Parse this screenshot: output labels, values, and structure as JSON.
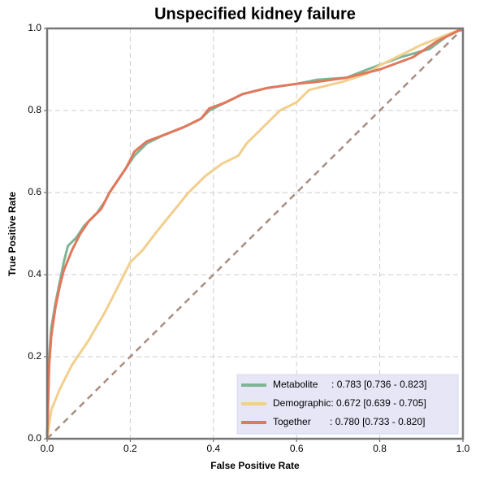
{
  "chart_data": {
    "type": "line",
    "title": "Unspecified kidney failure",
    "xlabel": "False Positive Rate",
    "ylabel": "True Positive Rate",
    "xlim": [
      0,
      1
    ],
    "ylim": [
      0,
      1
    ],
    "xticks": [
      {
        "value": 0,
        "label": "0.0"
      },
      0.2,
      0.4,
      0.6,
      0.8,
      {
        "value": 1,
        "label": "1.0"
      }
    ],
    "yticks": [
      {
        "value": 0,
        "label": "0.0"
      },
      0.2,
      0.4,
      0.6,
      0.8,
      {
        "value": 1,
        "label": "1.0"
      }
    ],
    "grid": true,
    "legend": "lower right",
    "series": [
      {
        "name": "Metabolite     : 0.783 [0.736 - 0.823]",
        "color": "#7fb596",
        "x": [
          0,
          0.005,
          0.01,
          0.02,
          0.03,
          0.04,
          0.05,
          0.07,
          0.09,
          0.12,
          0.14,
          0.15,
          0.17,
          0.19,
          0.21,
          0.24,
          0.28,
          0.33,
          0.37,
          0.39,
          0.43,
          0.47,
          0.53,
          0.6,
          0.65,
          0.72,
          0.77,
          0.85,
          0.92,
          0.96,
          1
        ],
        "values": [
          0,
          0.2,
          0.27,
          0.33,
          0.38,
          0.43,
          0.47,
          0.49,
          0.52,
          0.55,
          0.58,
          0.6,
          0.63,
          0.66,
          0.69,
          0.72,
          0.74,
          0.76,
          0.78,
          0.8,
          0.82,
          0.84,
          0.855,
          0.865,
          0.875,
          0.88,
          0.9,
          0.93,
          0.95,
          0.98,
          1
        ]
      },
      {
        "name": "Demographic: 0.672 [0.639 - 0.705]",
        "color": "#f2cf8d",
        "x": [
          0,
          0.01,
          0.03,
          0.06,
          0.1,
          0.14,
          0.17,
          0.2,
          0.23,
          0.26,
          0.3,
          0.34,
          0.38,
          0.42,
          0.46,
          0.48,
          0.52,
          0.56,
          0.6,
          0.63,
          0.67,
          0.71,
          0.77,
          0.8,
          0.86,
          0.9,
          0.95,
          1
        ],
        "values": [
          0,
          0.07,
          0.12,
          0.18,
          0.24,
          0.31,
          0.37,
          0.43,
          0.46,
          0.5,
          0.55,
          0.6,
          0.64,
          0.67,
          0.69,
          0.72,
          0.76,
          0.8,
          0.82,
          0.85,
          0.86,
          0.87,
          0.89,
          0.91,
          0.94,
          0.96,
          0.98,
          1
        ]
      },
      {
        "name": "Together       : 0.780 [0.733 - 0.820]",
        "color": "#e2775c",
        "x": [
          0,
          0.005,
          0.01,
          0.02,
          0.03,
          0.04,
          0.06,
          0.08,
          0.1,
          0.13,
          0.15,
          0.17,
          0.19,
          0.21,
          0.24,
          0.28,
          0.33,
          0.37,
          0.39,
          0.43,
          0.47,
          0.53,
          0.6,
          0.65,
          0.72,
          0.8,
          0.88,
          0.94,
          1
        ],
        "values": [
          0,
          0.18,
          0.25,
          0.32,
          0.37,
          0.41,
          0.46,
          0.5,
          0.53,
          0.56,
          0.6,
          0.63,
          0.66,
          0.7,
          0.725,
          0.74,
          0.76,
          0.78,
          0.805,
          0.82,
          0.84,
          0.855,
          0.865,
          0.87,
          0.88,
          0.9,
          0.93,
          0.97,
          1
        ]
      }
    ]
  }
}
